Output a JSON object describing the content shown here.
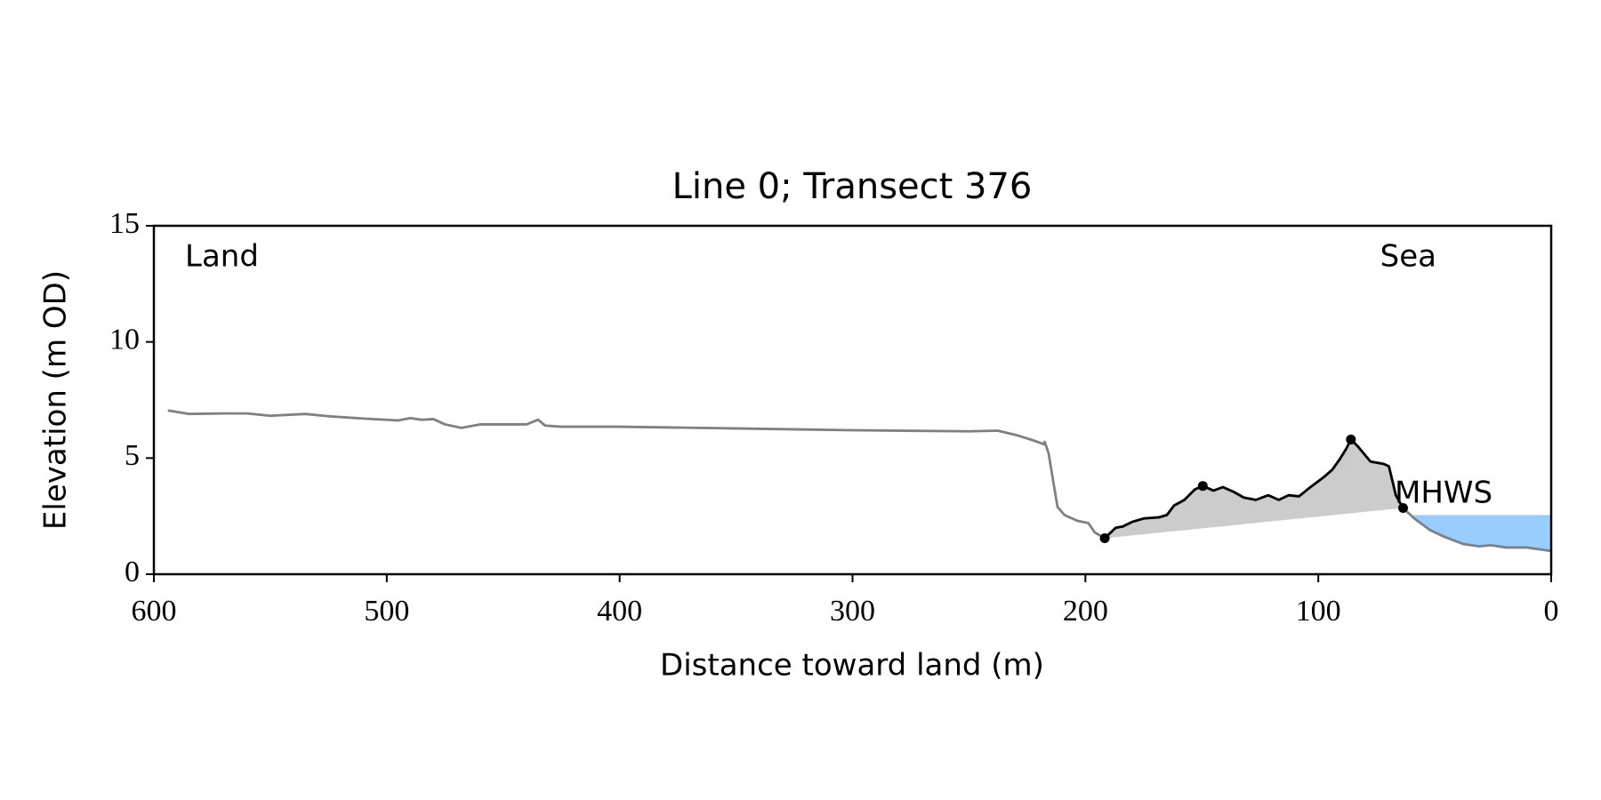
{
  "chart_data": {
    "type": "line",
    "title": "Line 0; Transect 376",
    "xlabel": "Distance toward land (m)",
    "ylabel": "Elevation (m OD)",
    "xlim": [
      600,
      0
    ],
    "ylim": [
      0,
      15
    ],
    "xticks": [
      600,
      500,
      400,
      300,
      200,
      100,
      0
    ],
    "yticks": [
      0,
      5,
      10,
      15
    ],
    "annotations": [
      "Land",
      "Sea"
    ],
    "series": [
      {
        "color": "#808080",
        "x": [
          594,
          585,
          570,
          560,
          550,
          535,
          525,
          510,
          495,
          490,
          485,
          480,
          475,
          468,
          460,
          450,
          440,
          435,
          432,
          425,
          400,
          300,
          250,
          237.7,
          230,
          222,
          218,
          217.5,
          215.8,
          212,
          209,
          203.5,
          198.7,
          196,
          191.7,
          187,
          184,
          180,
          175,
          168.4,
          165,
          162,
          157.5,
          153,
          149.6,
          145,
          141,
          136.4,
          132,
          126.8,
          121.5,
          117,
          112.7,
          108.3,
          104,
          98,
          94,
          90.8,
          88,
          86,
          83,
          77.6,
          72,
          69.7,
          66.7,
          63.6,
          58.8,
          52,
          45.6,
          37.7,
          31,
          26,
          19.3,
          10.5,
          0
        ],
        "values": [
          7.05,
          6.9,
          6.92,
          6.92,
          6.82,
          6.9,
          6.8,
          6.7,
          6.62,
          6.72,
          6.65,
          6.68,
          6.45,
          6.3,
          6.45,
          6.45,
          6.45,
          6.65,
          6.4,
          6.35,
          6.35,
          6.2,
          6.15,
          6.18,
          6.0,
          5.75,
          5.6,
          5.7,
          5.2,
          2.9,
          2.55,
          2.3,
          2.2,
          1.8,
          1.55,
          2.0,
          2.05,
          2.25,
          2.4,
          2.45,
          2.55,
          2.95,
          3.2,
          3.65,
          3.8,
          3.6,
          3.75,
          3.55,
          3.3,
          3.2,
          3.4,
          3.2,
          3.4,
          3.35,
          3.7,
          4.15,
          4.5,
          4.95,
          5.4,
          5.8,
          5.5,
          4.85,
          4.75,
          4.65,
          3.4,
          2.85,
          2.4,
          1.9,
          1.6,
          1.3,
          1.2,
          1.25,
          1.15,
          1.15,
          1.0
        ]
      },
      {
        "color": "#000000",
        "x": [
          191.7,
          187,
          184,
          180,
          175,
          168.4,
          165,
          162,
          157.5,
          153,
          149.6,
          145,
          141,
          136.4,
          132,
          126.8,
          121.5,
          117,
          112.7,
          108.3,
          104,
          98,
          94,
          90.8,
          88,
          86,
          83,
          77.6,
          72,
          69.7,
          66.7,
          63.6
        ],
        "values": [
          1.55,
          2.0,
          2.05,
          2.25,
          2.4,
          2.45,
          2.55,
          2.95,
          3.2,
          3.65,
          3.8,
          3.6,
          3.75,
          3.55,
          3.3,
          3.2,
          3.4,
          3.2,
          3.4,
          3.35,
          3.7,
          4.15,
          4.5,
          4.95,
          5.4,
          5.8,
          5.5,
          4.85,
          4.75,
          4.65,
          3.4,
          2.85
        ]
      }
    ],
    "points": {
      "color": "#000000",
      "x": [
        191.7,
        149.6,
        86,
        63.6
      ],
      "values": [
        1.55,
        3.8,
        5.8,
        2.85
      ]
    },
    "fill_color": "#cccccc",
    "mhws": {
      "label": "MHWS",
      "value": 2.55,
      "color": "#99ccff",
      "label_color": "#6699cc"
    }
  }
}
